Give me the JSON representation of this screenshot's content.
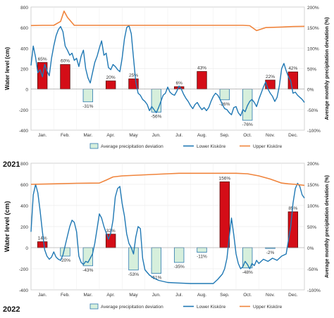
{
  "chart_data": [
    {
      "type": "line+bar",
      "year_label": "2021",
      "categories": [
        "Jan.",
        "Feb.",
        "Mar.",
        "Apr.",
        "May",
        "Jun.",
        "Jul.",
        "Aug.",
        "Sep.",
        "Oct.",
        "Nov.",
        "Dec."
      ],
      "ylabel_left": "Water level (cm)",
      "ylabel_right": "Average monthly precipitation deviation (%)",
      "left_ticks": [
        "800",
        "600",
        "400",
        "200",
        "0",
        "-200",
        "-400"
      ],
      "right_ticks": [
        "200%",
        "150%",
        "100%",
        "50%",
        "0%",
        "-50%",
        "-100%"
      ],
      "ylim_left": [
        -400,
        800
      ],
      "ylim_right": [
        -100,
        200
      ],
      "bars": [
        {
          "month": "Jan.",
          "value": 65,
          "label": "65%"
        },
        {
          "month": "Feb.",
          "value": 60,
          "label": "60%"
        },
        {
          "month": "Mar.",
          "value": -31,
          "label": "-31%"
        },
        {
          "month": "Apr.",
          "value": 20,
          "label": "20%"
        },
        {
          "month": "May",
          "value": 25,
          "label": "25%"
        },
        {
          "month": "Jun.",
          "value": -56,
          "label": "-56%"
        },
        {
          "month": "Jul.",
          "value": 6,
          "label": "6%"
        },
        {
          "month": "Aug.",
          "value": 43,
          "label": "43%"
        },
        {
          "month": "Sep.",
          "value": -26,
          "label": "-26%"
        },
        {
          "month": "Oct.",
          "value": -76,
          "label": "-76%"
        },
        {
          "month": "Nov.",
          "value": 22,
          "label": "22%"
        },
        {
          "month": "Dec.",
          "value": 42,
          "label": "42%"
        }
      ],
      "series": [
        {
          "name": "Lower Kisköre",
          "x": [
            0,
            0.1,
            0.2,
            0.3,
            0.4,
            0.5,
            0.6,
            0.7,
            0.8,
            0.9,
            1.0,
            1.1,
            1.2,
            1.3,
            1.4,
            1.5,
            1.6,
            1.7,
            1.8,
            1.9,
            2.0,
            2.1,
            2.2,
            2.3,
            2.4,
            2.5,
            2.6,
            2.7,
            2.8,
            2.9,
            3.0,
            3.1,
            3.2,
            3.3,
            3.4,
            3.5,
            3.6,
            3.7,
            3.8,
            3.9,
            4.0,
            4.1,
            4.2,
            4.3,
            4.4,
            4.5,
            4.6,
            4.7,
            4.8,
            4.9,
            5.0,
            5.1,
            5.2,
            5.3,
            5.4,
            5.5,
            5.6,
            5.7,
            5.8,
            5.9,
            6.0,
            6.1,
            6.2,
            6.3,
            6.4,
            6.5,
            6.6,
            6.7,
            6.8,
            6.9,
            7.0,
            7.1,
            7.2,
            7.3,
            7.4,
            7.5,
            7.6,
            7.7,
            7.8,
            7.9,
            8.0,
            8.1,
            8.2,
            8.3,
            8.4,
            8.5,
            8.6,
            8.7,
            8.8,
            8.9,
            9.0,
            9.1,
            9.2,
            9.3,
            9.4,
            9.5,
            9.6,
            9.7,
            9.8,
            9.9,
            10.0,
            10.1,
            10.2,
            10.3,
            10.4,
            10.5,
            10.6,
            10.7,
            10.8,
            10.9,
            11.0,
            11.1,
            11.2,
            11.3,
            11.4,
            11.5,
            11.6,
            11.7,
            11.8,
            11.9,
            12.0
          ],
          "values": [
            230,
            420,
            310,
            160,
            190,
            120,
            240,
            180,
            130,
            300,
            420,
            520,
            580,
            610,
            560,
            420,
            380,
            330,
            350,
            280,
            300,
            220,
            320,
            380,
            200,
            110,
            60,
            160,
            260,
            320,
            400,
            470,
            330,
            350,
            210,
            190,
            240,
            220,
            190,
            170,
            300,
            490,
            600,
            620,
            540,
            300,
            70,
            -40,
            -60,
            -100,
            -120,
            -150,
            -210,
            -170,
            -200,
            -230,
            -180,
            -120,
            -60,
            -40,
            20,
            -30,
            -50,
            -60,
            -20,
            30,
            0,
            -50,
            -90,
            -120,
            -160,
            -190,
            -150,
            -130,
            -170,
            -200,
            -180,
            -210,
            -180,
            -120,
            -70,
            -40,
            -60,
            -100,
            -150,
            -190,
            -200,
            -230,
            -250,
            -180,
            -170,
            -230,
            -260,
            -200,
            -220,
            -160,
            -120,
            -100,
            -130,
            -170,
            -100,
            -40,
            20,
            70,
            0,
            -40,
            -70,
            -120,
            -80,
            30,
            200,
            250,
            180,
            120,
            80,
            -40,
            -30,
            -60,
            -80,
            -100,
            -130
          ]
        },
        {
          "name": "Upper Kisköre",
          "x": [
            0,
            0.5,
            1.0,
            1.3,
            1.45,
            1.6,
            1.9,
            2.2,
            2.5,
            3.0,
            4.0,
            5.0,
            6.0,
            7.0,
            8.0,
            9.0,
            9.3,
            9.6,
            9.9,
            10.3,
            11.0,
            11.5,
            12.0
          ],
          "values": [
            620,
            622,
            622,
            660,
            760,
            700,
            622,
            622,
            622,
            622,
            622,
            622,
            622,
            622,
            622,
            622,
            622,
            618,
            570,
            600,
            605,
            610,
            612
          ]
        }
      ],
      "legend": [
        "Average precipitation deviation",
        "Lower Kisköre",
        "Upper Kisköre"
      ],
      "colors": {
        "positive_bar": "#d40d17",
        "negative_bar": "#d6efdc",
        "negative_bar_edge": "#2b78b0",
        "lower": "#1f78b4",
        "upper": "#f0843c"
      }
    },
    {
      "type": "line+bar",
      "year_label": "2022",
      "categories": [
        "Jan.",
        "Feb.",
        "Mar.",
        "Apr.",
        "May",
        "Jun.",
        "Jul.",
        "Aug.",
        "Sep.",
        "Oct.",
        "Nov.",
        "Dec."
      ],
      "ylabel_left": "Water level (cm)",
      "ylabel_right": "Average monthly precipitation deviation (%)",
      "left_ticks": [
        "800",
        "600",
        "400",
        "200",
        "0",
        "-200",
        "-400"
      ],
      "right_ticks": [
        "200%",
        "150%",
        "100%",
        "50%",
        "0%",
        "-50%",
        "-100%"
      ],
      "ylim_left": [
        -400,
        800
      ],
      "ylim_right": [
        -100,
        200
      ],
      "bars": [
        {
          "month": "Jan.",
          "value": 14,
          "label": "14%"
        },
        {
          "month": "Feb.",
          "value": -20,
          "label": "-20%"
        },
        {
          "month": "Mar.",
          "value": -43,
          "label": "-43%"
        },
        {
          "month": "Apr.",
          "value": 32,
          "label": "32%"
        },
        {
          "month": "May",
          "value": -53,
          "label": "-53%"
        },
        {
          "month": "Jun.",
          "value": -61,
          "label": "-61%"
        },
        {
          "month": "Jul.",
          "value": -35,
          "label": "-35%"
        },
        {
          "month": "Aug.",
          "value": -11,
          "label": "-11%"
        },
        {
          "month": "Sep.",
          "value": 156,
          "label": "156%"
        },
        {
          "month": "Oct.",
          "value": -48,
          "label": "-48%"
        },
        {
          "month": "Nov.",
          "value": -2,
          "label": "-2%"
        },
        {
          "month": "Dec.",
          "value": 85,
          "label": "85%"
        }
      ],
      "series": [
        {
          "name": "Lower Kisköre",
          "x": [
            0,
            0.1,
            0.2,
            0.3,
            0.4,
            0.5,
            0.6,
            0.7,
            0.8,
            0.9,
            1.0,
            1.1,
            1.2,
            1.3,
            1.4,
            1.5,
            1.6,
            1.7,
            1.8,
            1.9,
            2.0,
            2.1,
            2.2,
            2.3,
            2.4,
            2.5,
            2.6,
            2.7,
            2.8,
            2.9,
            3.0,
            3.1,
            3.2,
            3.3,
            3.4,
            3.5,
            3.6,
            3.7,
            3.8,
            3.9,
            4.0,
            4.1,
            4.2,
            4.3,
            4.4,
            4.5,
            4.6,
            4.7,
            4.8,
            4.9,
            5.0,
            5.2,
            5.4,
            5.6,
            5.8,
            6.0,
            6.5,
            7.0,
            7.5,
            8.0,
            8.2,
            8.4,
            8.5,
            8.6,
            8.7,
            8.8,
            8.9,
            9.0,
            9.1,
            9.2,
            9.3,
            9.4,
            9.5,
            9.6,
            9.7,
            9.8,
            9.9,
            10.0,
            10.2,
            10.4,
            10.6,
            10.8,
            11.0,
            11.2,
            11.4,
            11.5,
            11.6,
            11.7,
            11.8,
            11.9,
            12.0
          ],
          "values": [
            150,
            500,
            600,
            520,
            350,
            150,
            -20,
            -80,
            -110,
            -90,
            -40,
            -90,
            -110,
            -120,
            -70,
            20,
            110,
            200,
            260,
            240,
            150,
            -80,
            -140,
            -160,
            -130,
            -140,
            -100,
            -60,
            40,
            180,
            320,
            280,
            200,
            140,
            80,
            140,
            260,
            480,
            560,
            580,
            420,
            300,
            130,
            40,
            0,
            -60,
            100,
            200,
            180,
            -100,
            -210,
            -260,
            -290,
            -310,
            -320,
            -330,
            -335,
            -340,
            -340,
            -340,
            -300,
            -250,
            -200,
            -100,
            100,
            280,
            120,
            -60,
            -150,
            -200,
            -180,
            -130,
            -160,
            -200,
            -150,
            -170,
            -120,
            -150,
            -110,
            -130,
            -100,
            -120,
            -80,
            -60,
            200,
            420,
            560,
            610,
            580,
            500,
            470
          ]
        },
        {
          "name": "Upper Kisköre",
          "x": [
            0,
            1.0,
            2.0,
            3.0,
            3.3,
            3.6,
            4.0,
            5.0,
            6.0,
            6.5,
            7.0,
            8.0,
            9.0,
            9.5,
            10.0,
            10.5,
            11.0,
            11.3,
            11.6,
            12.0
          ],
          "values": [
            600,
            605,
            610,
            612,
            640,
            670,
            680,
            690,
            700,
            705,
            705,
            705,
            705,
            700,
            680,
            650,
            612,
            605,
            600,
            590
          ]
        }
      ],
      "legend": [
        "Average precipitation deviation",
        "Lower Kisköre",
        "Upper Kisköre"
      ],
      "colors": {
        "positive_bar": "#d40d17",
        "negative_bar": "#d6efdc",
        "negative_bar_edge": "#2b78b0",
        "lower": "#1f78b4",
        "upper": "#f0843c"
      }
    }
  ]
}
